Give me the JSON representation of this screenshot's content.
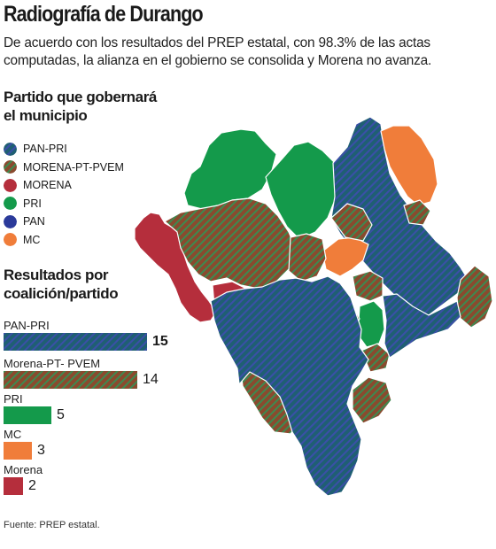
{
  "title": "Radiografía de Durango",
  "subtitle": "De acuerdo con los resultados del PREP estatal, con 98.3% de las actas computadas, la alianza en el gobierno se consolida y Morena no avanza.",
  "legend": {
    "heading_line1": "Partido que gobernará",
    "heading_line2": "el municipio",
    "items": [
      {
        "label": "PAN-PRI",
        "pattern": "pan-pri"
      },
      {
        "label": "MORENA-PT-PVEM",
        "pattern": "morena-pt-pvem"
      },
      {
        "label": "MORENA",
        "pattern": "morena"
      },
      {
        "label": "PRI",
        "pattern": "pri"
      },
      {
        "label": "PAN",
        "pattern": "pan"
      },
      {
        "label": "MC",
        "pattern": "mc"
      }
    ]
  },
  "results": {
    "heading_line1": "Resultados por",
    "heading_line2": "coalición/partido",
    "bars": [
      {
        "label": "PAN-PRI",
        "value": 15,
        "value_text": "15",
        "pattern": "pan-pri",
        "bold": true
      },
      {
        "label": "Morena-PT- PVEM",
        "value": 14,
        "value_text": "14",
        "pattern": "morena-pt-pvem",
        "bold": false
      },
      {
        "label": "PRI",
        "value": 5,
        "value_text": "5",
        "pattern": "pri",
        "bold": false
      },
      {
        "label": "MC",
        "value": 3,
        "value_text": "3",
        "pattern": "mc",
        "bold": false
      },
      {
        "label": "Morena",
        "value": 2,
        "value_text": "2",
        "pattern": "morena",
        "bold": false
      }
    ]
  },
  "source": "Fuente: PREP estatal.",
  "colors": {
    "pan_pri_base": "#1f5f73",
    "pan_pri_stripe": "#3b4fa8",
    "morena_pt_pvem_base": "#8a4a2e",
    "morena_pt_pvem_stripe": "#2e8b4a",
    "morena": "#b52e3c",
    "pri": "#149a4b",
    "pan": "#2b3a9a",
    "mc": "#f07d3a"
  }
}
